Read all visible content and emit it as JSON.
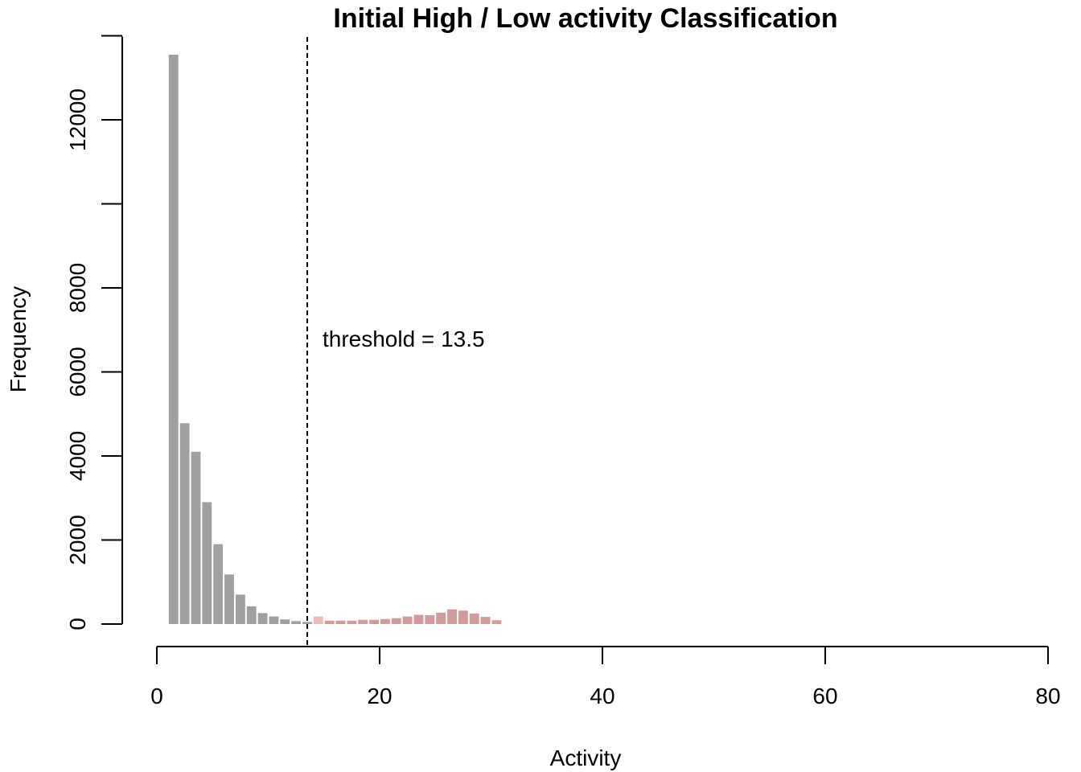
{
  "chart_data": {
    "type": "bar",
    "title": "Initial High / Low activity Classification",
    "xlabel": "Activity",
    "ylabel": "Frequency",
    "xlim": [
      0,
      80
    ],
    "ylim": [
      0,
      13500
    ],
    "x_ticks": [
      "0",
      "20",
      "40",
      "60",
      "80"
    ],
    "x_tick_values": [
      0,
      20,
      40,
      60,
      80
    ],
    "y_ticks": [
      "0",
      "2000",
      "4000",
      "6000",
      "8000",
      "",
      "12000",
      ""
    ],
    "y_tick_values": [
      0,
      2000,
      4000,
      6000,
      8000,
      10000,
      12000,
      14000
    ],
    "bin_width": 1,
    "threshold": 13.5,
    "annotation": "threshold = 13.5",
    "grid": false,
    "colors": {
      "low": "#a0a0a0",
      "high": "#d49a9a",
      "threshold_bin": "#f2b8b8",
      "threshold_line": "#000000"
    },
    "series": [
      {
        "values": [
          {
            "x": 1.5,
            "value": 13550
          },
          {
            "x": 2.5,
            "value": 4780
          },
          {
            "x": 3.5,
            "value": 4100
          },
          {
            "x": 4.5,
            "value": 2900
          },
          {
            "x": 5.5,
            "value": 1900
          },
          {
            "x": 6.5,
            "value": 1180
          },
          {
            "x": 7.5,
            "value": 700
          },
          {
            "x": 8.5,
            "value": 420
          },
          {
            "x": 9.5,
            "value": 260
          },
          {
            "x": 10.5,
            "value": 180
          },
          {
            "x": 11.5,
            "value": 110
          },
          {
            "x": 12.5,
            "value": 70
          },
          {
            "x": 13.5,
            "value": 50
          }
        ]
      },
      {
        "values": [
          {
            "x": 14.5,
            "value": 180
          },
          {
            "x": 15.5,
            "value": 80
          },
          {
            "x": 16.5,
            "value": 80
          },
          {
            "x": 17.5,
            "value": 80
          },
          {
            "x": 18.5,
            "value": 100
          },
          {
            "x": 19.5,
            "value": 100
          },
          {
            "x": 20.5,
            "value": 120
          },
          {
            "x": 21.5,
            "value": 140
          },
          {
            "x": 22.5,
            "value": 180
          },
          {
            "x": 23.5,
            "value": 220
          },
          {
            "x": 24.5,
            "value": 210
          },
          {
            "x": 25.5,
            "value": 270
          },
          {
            "x": 26.5,
            "value": 350
          },
          {
            "x": 27.5,
            "value": 320
          },
          {
            "x": 28.5,
            "value": 250
          },
          {
            "x": 29.5,
            "value": 170
          },
          {
            "x": 30.5,
            "value": 90
          }
        ]
      }
    ]
  }
}
